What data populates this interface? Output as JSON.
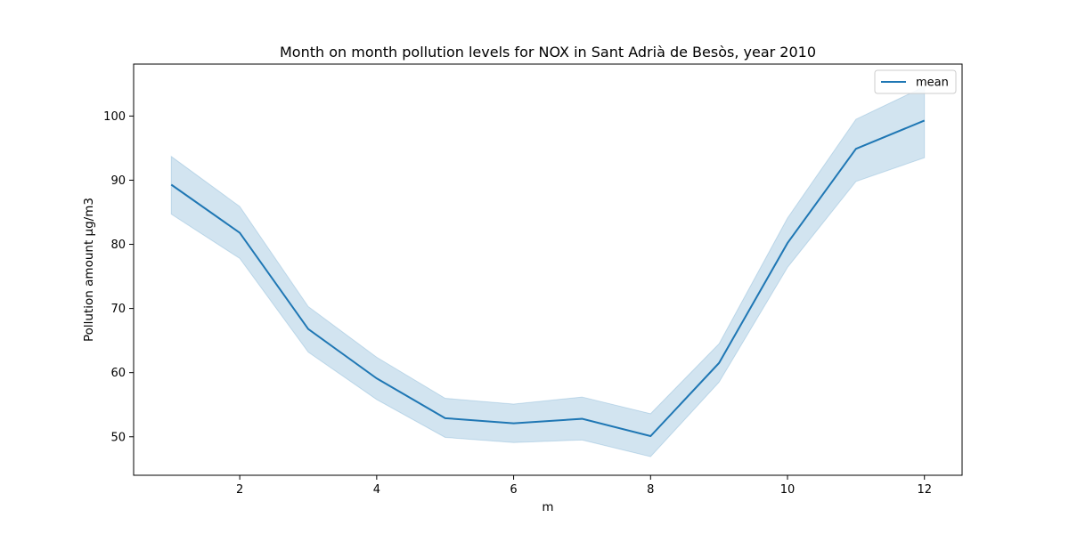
{
  "chart_data": {
    "type": "line",
    "title": "Month on month pollution levels for NOX in Sant Adrià de Besòs, year 2010",
    "xlabel": "m",
    "ylabel": "Pollution amount µg/m3",
    "xlim": [
      0.45,
      12.55
    ],
    "ylim": [
      44.0,
      108.1
    ],
    "xticks": [
      2,
      4,
      6,
      8,
      10,
      12
    ],
    "yticks": [
      50,
      60,
      70,
      80,
      90,
      100
    ],
    "legend": {
      "placement": "top-right",
      "entries": [
        "mean"
      ]
    },
    "grid": false,
    "colors": {
      "line": "#1f77b4",
      "band": "#1f77b4"
    },
    "series": [
      {
        "name": "mean",
        "x": [
          1,
          2,
          3,
          4,
          5,
          6,
          7,
          8,
          9,
          10,
          11,
          12
        ],
        "values": [
          89.3,
          81.8,
          66.8,
          59.1,
          52.9,
          52.1,
          52.8,
          50.1,
          61.5,
          80.2,
          94.9,
          99.3
        ],
        "lower": [
          84.7,
          77.8,
          63.2,
          55.8,
          49.9,
          49.1,
          49.5,
          46.9,
          58.5,
          76.4,
          89.8,
          93.5
        ],
        "upper": [
          93.7,
          85.9,
          70.3,
          62.4,
          56.0,
          55.1,
          56.2,
          53.6,
          64.5,
          84.1,
          99.5,
          104.6
        ]
      }
    ]
  }
}
